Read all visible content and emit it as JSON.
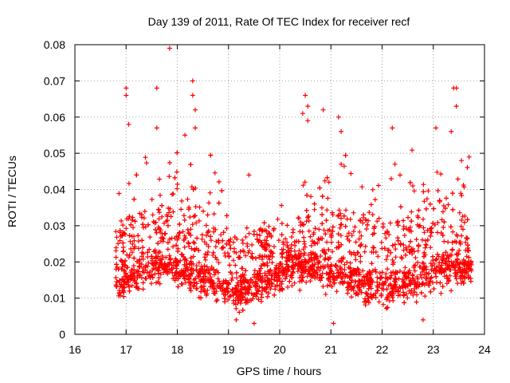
{
  "chart_data": {
    "type": "scatter",
    "title": "Day 139 of 2011, Rate Of TEC Index for receiver recf",
    "xlabel": "GPS time / hours",
    "ylabel": "ROTI / TECUs",
    "xlim": [
      16,
      24
    ],
    "ylim": [
      0,
      0.08
    ],
    "xticks": [
      "16",
      "17",
      "18",
      "19",
      "20",
      "21",
      "22",
      "23",
      "24"
    ],
    "yticks": [
      "0",
      "0.01",
      "0.02",
      "0.03",
      "0.04",
      "0.05",
      "0.06",
      "0.07",
      "0.08"
    ],
    "grid": true,
    "marker": "+",
    "color": "#ff0000",
    "series": [
      {
        "name": "ROTI",
        "x_range": [
          16.8,
          23.75
        ],
        "typical_band": [
          0.008,
          0.03
        ],
        "notable_points": [
          {
            "x": 17.0,
            "y": 0.068
          },
          {
            "x": 17.0,
            "y": 0.066
          },
          {
            "x": 17.05,
            "y": 0.058
          },
          {
            "x": 17.6,
            "y": 0.068
          },
          {
            "x": 17.6,
            "y": 0.057
          },
          {
            "x": 17.85,
            "y": 0.079
          },
          {
            "x": 18.15,
            "y": 0.055
          },
          {
            "x": 18.3,
            "y": 0.07
          },
          {
            "x": 18.3,
            "y": 0.066
          },
          {
            "x": 18.35,
            "y": 0.062
          },
          {
            "x": 18.35,
            "y": 0.057
          },
          {
            "x": 19.4,
            "y": 0.044
          },
          {
            "x": 19.15,
            "y": 0.004
          },
          {
            "x": 19.5,
            "y": 0.003
          },
          {
            "x": 20.45,
            "y": 0.061
          },
          {
            "x": 20.5,
            "y": 0.066
          },
          {
            "x": 20.55,
            "y": 0.063
          },
          {
            "x": 20.55,
            "y": 0.059
          },
          {
            "x": 20.85,
            "y": 0.062
          },
          {
            "x": 21.15,
            "y": 0.06
          },
          {
            "x": 21.2,
            "y": 0.056
          },
          {
            "x": 21.2,
            "y": 0.047
          },
          {
            "x": 21.05,
            "y": 0.003
          },
          {
            "x": 22.2,
            "y": 0.057
          },
          {
            "x": 22.25,
            "y": 0.047
          },
          {
            "x": 22.35,
            "y": 0.044
          },
          {
            "x": 22.6,
            "y": 0.041
          },
          {
            "x": 22.8,
            "y": 0.004
          },
          {
            "x": 23.05,
            "y": 0.057
          },
          {
            "x": 23.35,
            "y": 0.056
          },
          {
            "x": 23.4,
            "y": 0.068
          },
          {
            "x": 23.45,
            "y": 0.068
          },
          {
            "x": 23.45,
            "y": 0.063
          },
          {
            "x": 23.55,
            "y": 0.048
          },
          {
            "x": 23.7,
            "y": 0.049
          }
        ]
      }
    ]
  }
}
